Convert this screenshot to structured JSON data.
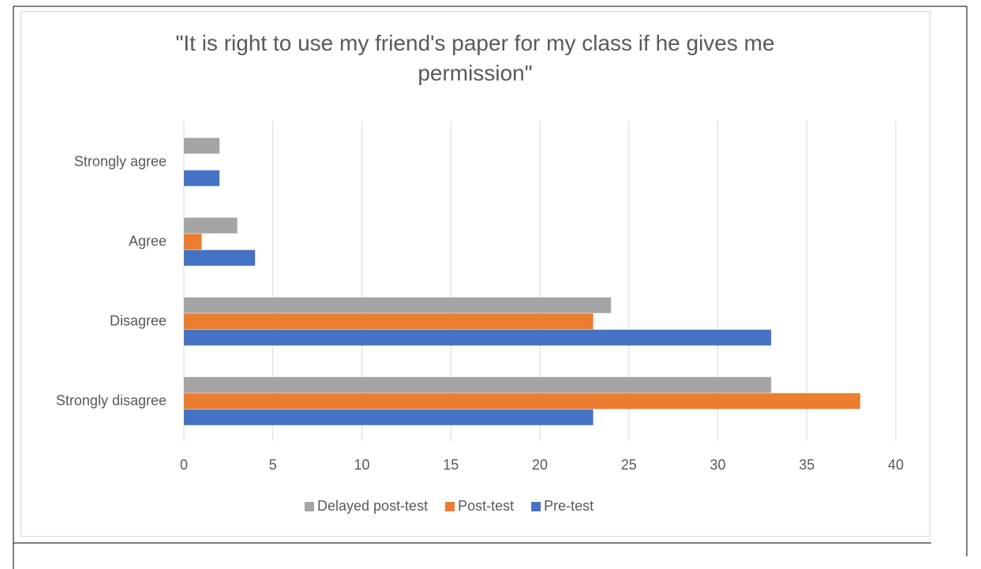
{
  "chart_data": {
    "type": "hbar",
    "title": "\"It is right to use my friend's paper for my class if he gives me permission\"",
    "categories": [
      "Strongly agree",
      "Agree",
      "Disagree",
      "Strongly disagree"
    ],
    "series": [
      {
        "name": "Delayed post-test",
        "color": "#a5a5a5",
        "values": [
          2,
          3,
          24,
          33
        ]
      },
      {
        "name": "Post-test",
        "color": "#ed7d31",
        "values": [
          0,
          1,
          23,
          38
        ]
      },
      {
        "name": "Pre-test",
        "color": "#4472c4",
        "values": [
          2,
          4,
          33,
          23
        ]
      }
    ],
    "xlim": [
      0,
      40
    ],
    "xticks": [
      0,
      5,
      10,
      15,
      20,
      25,
      30,
      35,
      40
    ],
    "grid": true,
    "legend": "bottom"
  }
}
